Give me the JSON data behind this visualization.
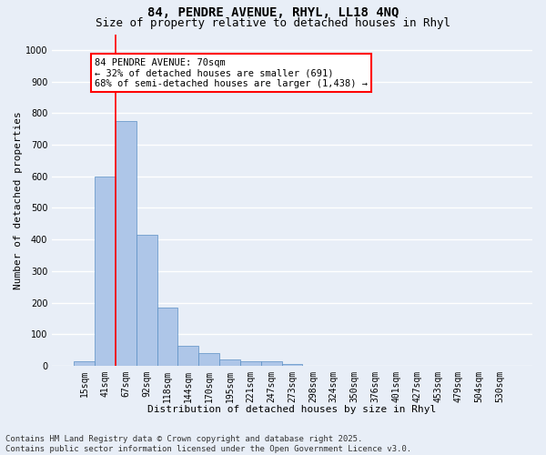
{
  "title_line1": "84, PENDRE AVENUE, RHYL, LL18 4NQ",
  "title_line2": "Size of property relative to detached houses in Rhyl",
  "xlabel": "Distribution of detached houses by size in Rhyl",
  "ylabel": "Number of detached properties",
  "categories": [
    "15sqm",
    "41sqm",
    "67sqm",
    "92sqm",
    "118sqm",
    "144sqm",
    "170sqm",
    "195sqm",
    "221sqm",
    "247sqm",
    "273sqm",
    "298sqm",
    "324sqm",
    "350sqm",
    "376sqm",
    "401sqm",
    "427sqm",
    "453sqm",
    "479sqm",
    "504sqm",
    "530sqm"
  ],
  "values": [
    15,
    600,
    775,
    415,
    185,
    65,
    40,
    20,
    15,
    15,
    5,
    0,
    0,
    0,
    0,
    0,
    0,
    0,
    0,
    0,
    0
  ],
  "bar_color": "#aec6e8",
  "bar_edge_color": "#5a8fc4",
  "vline_x": 1.5,
  "vline_color": "red",
  "annotation_text": "84 PENDRE AVENUE: 70sqm\n← 32% of detached houses are smaller (691)\n68% of semi-detached houses are larger (1,438) →",
  "annotation_box_color": "white",
  "annotation_box_edge": "red",
  "ylim": [
    0,
    1050
  ],
  "yticks": [
    0,
    100,
    200,
    300,
    400,
    500,
    600,
    700,
    800,
    900,
    1000
  ],
  "background_color": "#e8eef7",
  "grid_color": "white",
  "footnote": "Contains HM Land Registry data © Crown copyright and database right 2025.\nContains public sector information licensed under the Open Government Licence v3.0.",
  "title_fontsize": 10,
  "subtitle_fontsize": 9,
  "tick_fontsize": 7,
  "label_fontsize": 8,
  "annot_fontsize": 7.5,
  "footnote_fontsize": 6.5
}
